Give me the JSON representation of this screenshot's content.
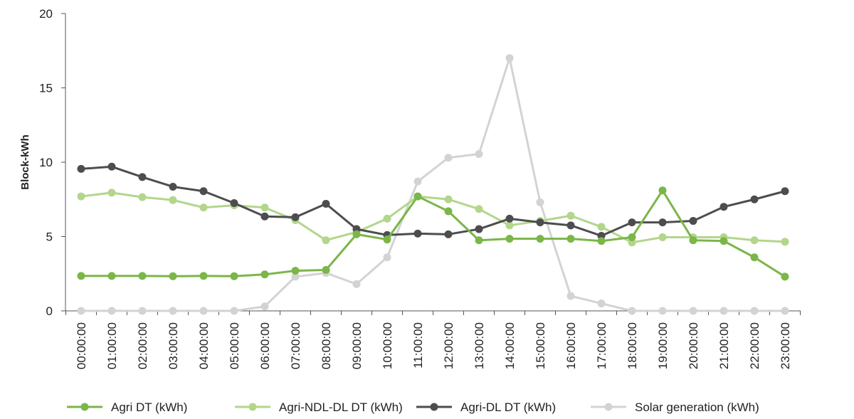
{
  "chart_data": {
    "type": "line",
    "title": "",
    "xlabel": "",
    "ylabel": "Block-kWh",
    "ylim": [
      0,
      20
    ],
    "yticks": [
      0,
      5,
      10,
      15,
      20
    ],
    "grid": false,
    "legend_position": "bottom",
    "categories": [
      "00:00:00",
      "01:00:00",
      "02:00:00",
      "03:00:00",
      "04:00:00",
      "05:00:00",
      "06:00:00",
      "07:00:00",
      "08:00:00",
      "09:00:00",
      "10:00:00",
      "11:00:00",
      "12:00:00",
      "13:00:00",
      "14:00:00",
      "15:00:00",
      "16:00:00",
      "17:00:00",
      "18:00:00",
      "19:00:00",
      "20:00:00",
      "21:00:00",
      "22:00:00",
      "23:00:00"
    ],
    "series": [
      {
        "name": "Agri DT (kWh)",
        "color": "#7ab648",
        "values": [
          2.35,
          2.35,
          2.35,
          2.33,
          2.35,
          2.33,
          2.45,
          2.7,
          2.75,
          5.15,
          4.8,
          7.7,
          6.7,
          4.75,
          4.85,
          4.85,
          4.85,
          4.7,
          4.95,
          8.1,
          4.75,
          4.7,
          3.6,
          2.3
        ]
      },
      {
        "name": "Agri-NDL-DL DT (kWh)",
        "color": "#b2d68b",
        "values": [
          7.7,
          7.95,
          7.65,
          7.45,
          6.95,
          7.1,
          6.95,
          6.1,
          4.75,
          5.3,
          6.2,
          7.7,
          7.5,
          6.85,
          5.75,
          6.05,
          6.4,
          5.65,
          4.6,
          4.95,
          4.95,
          4.95,
          4.75,
          4.65
        ]
      },
      {
        "name": "Agri-DL DT (kWh)",
        "color": "#4d4d4f",
        "values": [
          9.55,
          9.7,
          9.0,
          8.35,
          8.05,
          7.25,
          6.35,
          6.3,
          7.2,
          5.5,
          5.1,
          5.2,
          5.15,
          5.5,
          6.2,
          5.95,
          5.75,
          5.05,
          5.95,
          5.95,
          6.05,
          7.0,
          7.5,
          8.05
        ]
      },
      {
        "name": "Solar generation (kWh)",
        "color": "#d3d3d3",
        "values": [
          0,
          0,
          0,
          0,
          0,
          0,
          0.3,
          2.3,
          2.55,
          1.8,
          3.6,
          8.7,
          10.3,
          10.55,
          17.0,
          7.3,
          1.0,
          0.5,
          0,
          0,
          0,
          0,
          0,
          0
        ]
      }
    ]
  }
}
